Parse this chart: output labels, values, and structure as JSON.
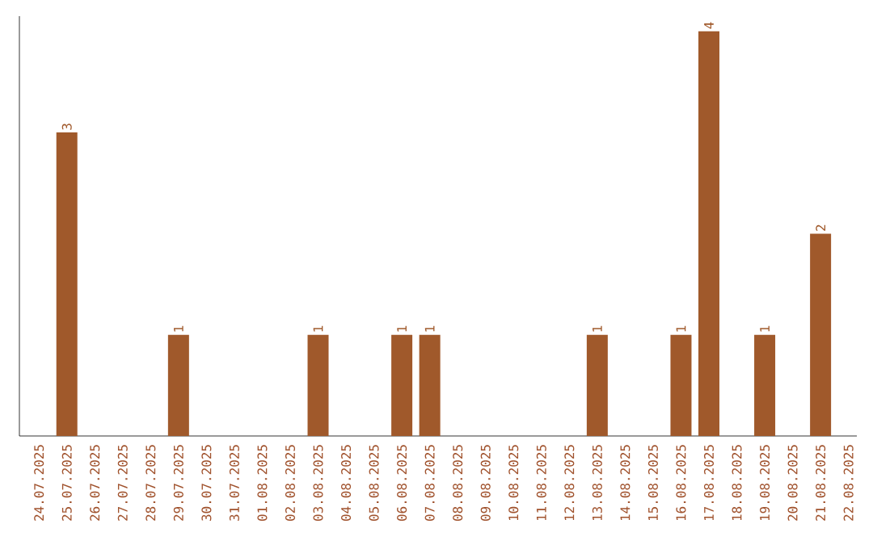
{
  "chart_data": {
    "type": "bar",
    "categories": [
      "24.07.2025",
      "25.07.2025",
      "26.07.2025",
      "27.07.2025",
      "28.07.2025",
      "29.07.2025",
      "30.07.2025",
      "31.07.2025",
      "01.08.2025",
      "02.08.2025",
      "03.08.2025",
      "04.08.2025",
      "05.08.2025",
      "06.08.2025",
      "07.08.2025",
      "08.08.2025",
      "09.08.2025",
      "10.08.2025",
      "11.08.2025",
      "12.08.2025",
      "13.08.2025",
      "14.08.2025",
      "15.08.2025",
      "16.08.2025",
      "17.08.2025",
      "18.08.2025",
      "19.08.2025",
      "20.08.2025",
      "21.08.2025",
      "22.08.2025"
    ],
    "values": [
      0,
      3,
      0,
      0,
      0,
      1,
      0,
      0,
      0,
      0,
      1,
      0,
      0,
      1,
      1,
      0,
      0,
      0,
      0,
      0,
      1,
      0,
      0,
      1,
      4,
      0,
      1,
      0,
      2,
      0
    ],
    "value_labels": [
      null,
      "3",
      null,
      null,
      null,
      "1",
      null,
      null,
      null,
      null,
      "1",
      null,
      null,
      "1",
      "1",
      null,
      null,
      null,
      null,
      null,
      "1",
      null,
      null,
      "1",
      "4",
      null,
      "1",
      null,
      "2",
      null
    ],
    "color": "#a0592b",
    "ylim": [
      0,
      4.15
    ]
  }
}
